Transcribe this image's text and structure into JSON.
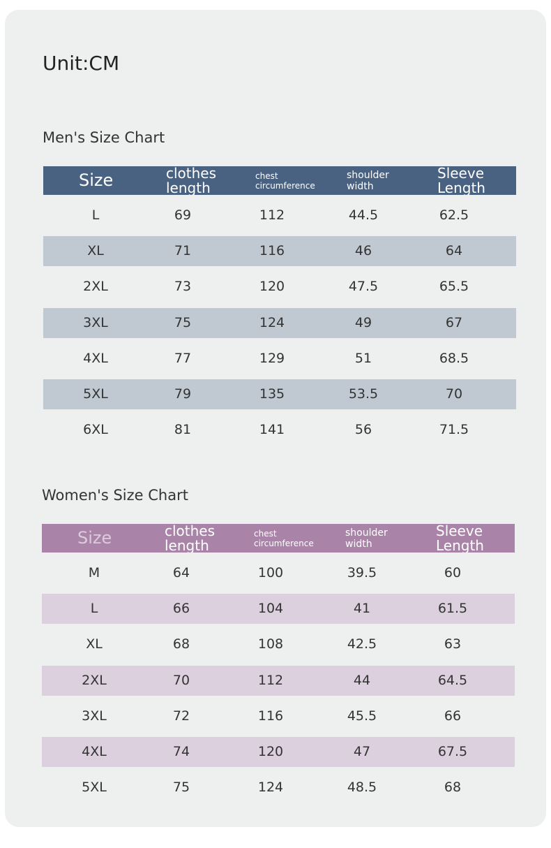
{
  "unit": "Unit:CM",
  "mens": {
    "title": "Men's Size Chart",
    "headers": [
      "Size",
      "clothes length",
      "chest circumference",
      "shoulder width",
      "Sleeve Length"
    ],
    "rows": [
      [
        "L",
        "69",
        "112",
        "44.5",
        "62.5"
      ],
      [
        "XL",
        "71",
        "116",
        "46",
        "64"
      ],
      [
        "2XL",
        "73",
        "120",
        "47.5",
        "65.5"
      ],
      [
        "3XL",
        "75",
        "124",
        "49",
        "67"
      ],
      [
        "4XL",
        "77",
        "129",
        "51",
        "68.5"
      ],
      [
        "5XL",
        "79",
        "135",
        "53.5",
        "70"
      ],
      [
        "6XL",
        "81",
        "141",
        "56",
        "71.5"
      ]
    ]
  },
  "womens": {
    "title": "Women's Size Chart",
    "headers": [
      "Size",
      "clothes length",
      "chest circumference",
      "shoulder width",
      "Sleeve Length"
    ],
    "rows": [
      [
        "M",
        "64",
        "100",
        "39.5",
        "60"
      ],
      [
        "L",
        "66",
        "104",
        "41",
        "61.5"
      ],
      [
        "XL",
        "68",
        "108",
        "42.5",
        "63"
      ],
      [
        "2XL",
        "70",
        "112",
        "44",
        "64.5"
      ],
      [
        "3XL",
        "72",
        "116",
        "45.5",
        "66"
      ],
      [
        "4XL",
        "74",
        "120",
        "47",
        "67.5"
      ],
      [
        "5XL",
        "75",
        "124",
        "48.5",
        "68"
      ]
    ]
  }
}
